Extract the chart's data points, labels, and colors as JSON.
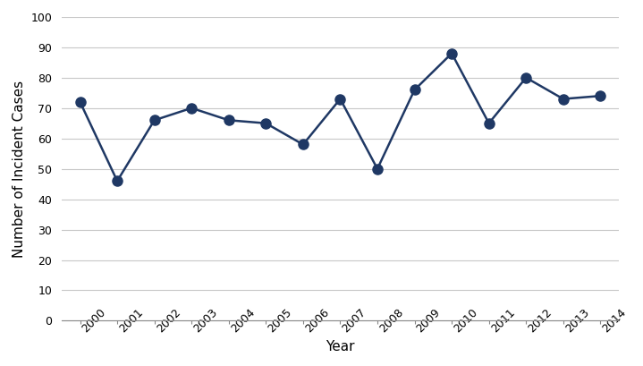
{
  "years": [
    2000,
    2001,
    2002,
    2003,
    2004,
    2005,
    2006,
    2007,
    2008,
    2009,
    2010,
    2011,
    2012,
    2013,
    2014
  ],
  "values": [
    72,
    46,
    66,
    70,
    66,
    65,
    58,
    73,
    50,
    76,
    88,
    65,
    80,
    73,
    74
  ],
  "line_color": "#1F3864",
  "marker_color": "#1F3864",
  "marker_style": "o",
  "marker_size": 8,
  "line_width": 1.8,
  "xlabel": "Year",
  "ylabel": "Number of Incident Cases",
  "ylim": [
    0,
    100
  ],
  "yticks": [
    0,
    10,
    20,
    30,
    40,
    50,
    60,
    70,
    80,
    90,
    100
  ],
  "xlim_left": 1999.5,
  "xlim_right": 2014.5,
  "grid_color": "#c8c8c8",
  "background_color": "#ffffff",
  "xlabel_fontsize": 11,
  "ylabel_fontsize": 11,
  "tick_fontsize": 9,
  "spine_color": "#888888"
}
